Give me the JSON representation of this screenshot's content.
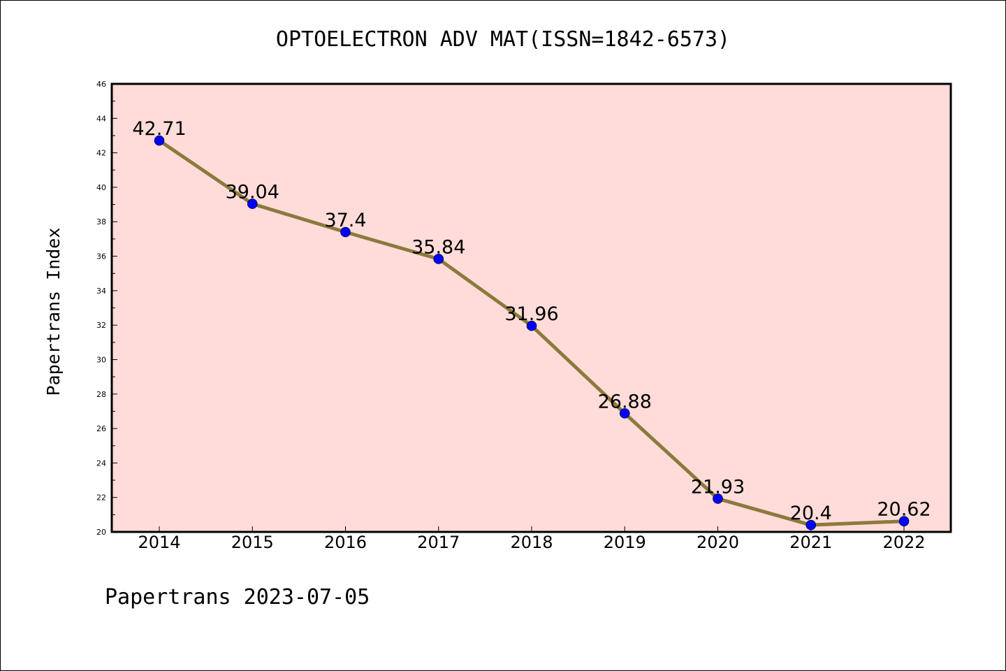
{
  "chart_data": {
    "type": "line",
    "title": "OPTOELECTRON ADV MAT(ISSN=1842-6573)",
    "ylabel": "Papertrans Index",
    "xlabel": "",
    "footer": "Papertrans 2023-07-05",
    "categories": [
      "2014",
      "2015",
      "2016",
      "2017",
      "2018",
      "2019",
      "2020",
      "2021",
      "2022"
    ],
    "series": [
      {
        "values": [
          42.71,
          39.04,
          37.4,
          35.84,
          31.96,
          26.88,
          21.93,
          20.4,
          20.62
        ],
        "labels": [
          "42.71",
          "39.04",
          "37.4",
          "35.84",
          "31.96",
          "26.88",
          "21.93",
          "20.4",
          "20.62"
        ]
      }
    ],
    "ylim": [
      20,
      46
    ],
    "yticks": [
      "20",
      "22",
      "24",
      "26",
      "28",
      "30",
      "32",
      "34",
      "36",
      "38",
      "40",
      "42",
      "44",
      "46"
    ],
    "grid": false,
    "legend": "none",
    "colors": {
      "plot_background": "#ffdcd9",
      "line": "#8b7a3c",
      "marker": "#0000ff",
      "axis": "#000000"
    }
  }
}
